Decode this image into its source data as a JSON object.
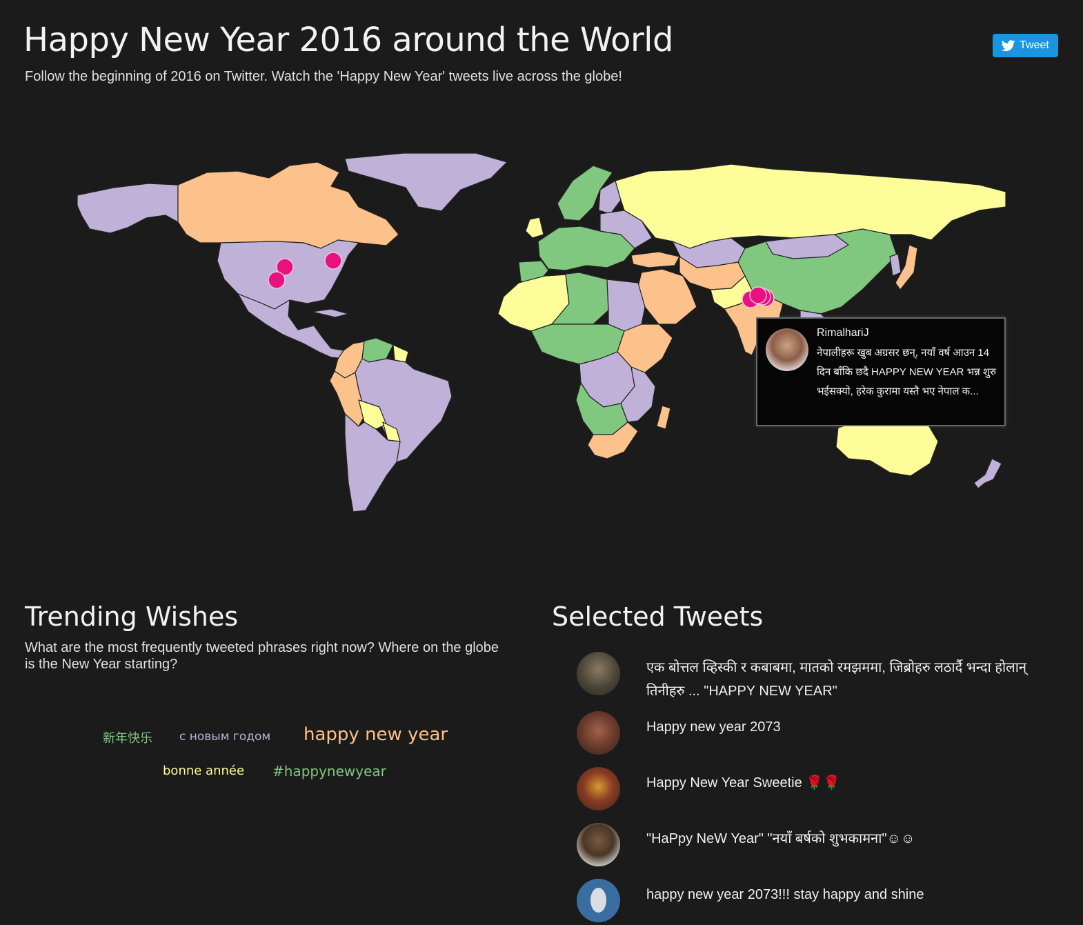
{
  "header": {
    "title": "Happy New Year 2016 around the World",
    "subtitle": "Follow the beginning of 2016 on Twitter. Watch the 'Happy New Year' tweets live across the globe!",
    "tweet_button_label": "Tweet",
    "tweet_button_icon": "twitter-bird-icon"
  },
  "colors": {
    "background": "#1b1b1b",
    "country_purple": "#bfb1d8",
    "country_orange": "#fdc28b",
    "country_yellow": "#fdfd99",
    "country_green": "#80c77f",
    "marker": "#e8117f",
    "twitter_blue": "#1b95e0"
  },
  "map": {
    "markers_visible": 7,
    "tooltip": {
      "user": "RimalhariJ",
      "text": "नेपालीहरू खुब अग्रसर छन्, नयाँ वर्ष आउन 14 दिन बाँकि छदै HAPPY NEW YEAR भन्न शुरु भईसक्यो, हरेक कुरामा यस्तै भए नेपाल क..."
    }
  },
  "trending": {
    "title": "Trending Wishes",
    "description": "What are the most frequently tweeted phrases right now? Where on the globe is the New Year starting?",
    "wishes": [
      {
        "text": "新年快乐",
        "color": "#80c77f"
      },
      {
        "text": "с новым годом",
        "color": "#bfb1d8"
      },
      {
        "text": "happy new year",
        "color": "#fdc28b"
      },
      {
        "text": "bonne année",
        "color": "#fdfd99"
      },
      {
        "text": "#happynewyear",
        "color": "#80c77f"
      }
    ]
  },
  "selected": {
    "title": "Selected Tweets",
    "tweets": [
      {
        "text": "एक बोत्तल व्हिस्की र कबाबमा, मातको रमझममा, जिब्रोहरु लठार्दै भन्दा होलान् तिनीहरु ... \"HAPPY NEW YEAR\""
      },
      {
        "text": "Happy new year 2073"
      },
      {
        "text": "Happy New Year Sweetie 🌹🌹"
      },
      {
        "text": "\"HaPpy NeW Year\" \"नयाँ बर्षको शुभकामना\"☺☺"
      },
      {
        "text": "happy new year 2073!!! stay happy and shine"
      }
    ]
  }
}
